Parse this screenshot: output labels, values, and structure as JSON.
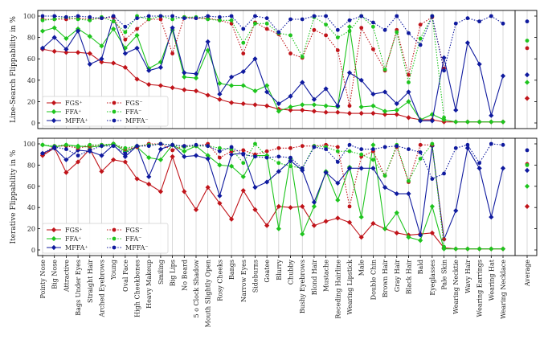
{
  "chart_data": {
    "type": "line",
    "categories": [
      "Pointy Nose",
      "Big Nose",
      "Attractive",
      "Bags Under Eyes",
      "Straight Hair",
      "Arched Eyebrows",
      "Young",
      "Oval Face",
      "High Cheekbones",
      "Heavy Makeup",
      "Smiling",
      "Big Lips",
      "No Beard",
      "5 o Clock Shadow",
      "Mouth Slightly Open",
      "Rosy Cheeks",
      "Bangs",
      "Narrow Eyes",
      "Sideburns",
      "Goatee",
      "Blurry",
      "Chubby",
      "Bushy Eyebrows",
      "Blond Hair",
      "Mustache",
      "Receding Hairline",
      "Wearing Lipstick",
      "Male",
      "Double Chin",
      "Brown Hair",
      "Gray Hair",
      "Black Hair",
      "Bald",
      "Eyeglasses",
      "Pale Skin",
      "Wearing Necktie",
      "Wavy Hair",
      "Wearing Earrings",
      "Wearing Hat",
      "Wearing Necklace"
    ],
    "average_label": "Average",
    "colors": {
      "FGS": "#c0141a",
      "FFA": "#1ec41e",
      "MFFA": "#0f1a9e"
    },
    "panels": [
      {
        "ylabel": "Line-Search Flippability in %",
        "ylim": [
          0,
          100
        ],
        "yticks": [
          0,
          20,
          40,
          60,
          80,
          100
        ],
        "legend_position": "lower-left",
        "series": [
          {
            "name": "FGS⁺",
            "key": "FGS",
            "style": "solid",
            "marker": "diamond",
            "values": [
              69,
              67,
              66,
              66,
              65,
              57,
              56,
              52,
              41,
              36,
              35,
              33,
              31,
              30,
              26,
              22,
              19,
              18,
              17,
              16,
              13,
              12,
              12,
              11,
              10,
              10,
              9,
              9,
              9,
              8,
              8,
              5,
              3,
              3,
              1,
              1,
              1,
              1,
              1,
              1
            ],
            "average": 23
          },
          {
            "name": "FFA⁺",
            "key": "FFA",
            "style": "solid",
            "marker": "diamond",
            "values": [
              86,
              89,
              79,
              88,
              81,
              72,
              88,
              70,
              82,
              51,
              57,
              87,
              43,
              42,
              68,
              37,
              35,
              35,
              30,
              35,
              11,
              15,
              17,
              17,
              16,
              15,
              90,
              15,
              16,
              11,
              12,
              20,
              3,
              8,
              3,
              1,
              1,
              1,
              1,
              1
            ],
            "average": 38
          },
          {
            "name": "MFFA⁺",
            "key": "MFFA",
            "style": "solid",
            "marker": "diamond",
            "values": [
              70,
              80,
              69,
              86,
              55,
              60,
              99,
              65,
              70,
              49,
              52,
              89,
              47,
              46,
              76,
              27,
              43,
              48,
              60,
              29,
              18,
              25,
              38,
              22,
              32,
              16,
              47,
              40,
              27,
              29,
              18,
              29,
              2,
              2,
              61,
              12,
              75,
              55,
              7,
              44
            ],
            "average": 45
          },
          {
            "name": "FGS⁻",
            "key": "FGS",
            "style": "dotted",
            "marker": "circle",
            "values": [
              97,
              97,
              97,
              98,
              97,
              98,
              99,
              78,
              88,
              97,
              97,
              65,
              99,
              98,
              98,
              96,
              93,
              65,
              94,
              88,
              83,
              65,
              61,
              87,
              82,
              68,
              16,
              89,
              69,
              49,
              87,
              45,
              92,
              99,
              51,
              null,
              null,
              null,
              null,
              null
            ],
            "average": 70
          },
          {
            "name": "FFA⁻",
            "key": "FFA",
            "style": "dotted",
            "marker": "circle",
            "values": [
              96,
              97,
              99,
              97,
              96,
              99,
              95,
              85,
              100,
              97,
              100,
              97,
              99,
              99,
              97,
              96,
              96,
              75,
              93,
              93,
              84,
              82,
              62,
              99,
              92,
              80,
              86,
              100,
              90,
              50,
              85,
              38,
              79,
              100,
              5,
              null,
              null,
              null,
              null,
              null
            ],
            "average": 77
          },
          {
            "name": "MFFA⁻",
            "key": "MFFA",
            "style": "dotted",
            "marker": "circle",
            "values": [
              100,
              100,
              99,
              100,
              99,
              98,
              100,
              90,
              98,
              100,
              100,
              100,
              98,
              98,
              100,
              99,
              100,
              88,
              100,
              98,
              85,
              97,
              97,
              100,
              100,
              87,
              96,
              100,
              94,
              87,
              100,
              84,
              73,
              100,
              49,
              93,
              98,
              95,
              100,
              93
            ],
            "average": 95
          }
        ]
      },
      {
        "ylabel": "Iterative Flippability in %",
        "ylim": [
          0,
          100
        ],
        "yticks": [
          0,
          20,
          40,
          60,
          80,
          100
        ],
        "legend_position": "lower-left",
        "series": [
          {
            "name": "FGS⁺",
            "key": "FGS",
            "style": "solid",
            "marker": "diamond",
            "values": [
              89,
              96,
              73,
              83,
              95,
              74,
              85,
              83,
              67,
              62,
              55,
              88,
              55,
              38,
              59,
              44,
              29,
              56,
              38,
              23,
              41,
              40,
              41,
              23,
              27,
              30,
              26,
              12,
              25,
              20,
              16,
              14,
              15,
              16,
              2,
              1,
              1,
              1,
              1,
              1
            ],
            "average": 41
          },
          {
            "name": "FFA⁺",
            "key": "FFA",
            "style": "solid",
            "marker": "diamond",
            "values": [
              99,
              97,
              99,
              98,
              97,
              98,
              100,
              93,
              97,
              87,
              85,
              99,
              93,
              98,
              89,
              80,
              79,
              69,
              89,
              89,
              20,
              86,
              15,
              41,
              74,
              47,
              78,
              31,
              99,
              20,
              35,
              12,
              9,
              41,
              1,
              1,
              1,
              1,
              1,
              1
            ],
            "average": 60
          },
          {
            "name": "MFFA⁺",
            "key": "MFFA",
            "style": "solid",
            "marker": "diamond",
            "values": [
              91,
              96,
              85,
              94,
              93,
              89,
              99,
              88,
              98,
              69,
              95,
              99,
              88,
              89,
              86,
              51,
              90,
              91,
              59,
              64,
              74,
              84,
              75,
              45,
              73,
              63,
              77,
              77,
              77,
              59,
              53,
              53,
              14,
              98,
              10,
              37,
              96,
              77,
              31,
              77
            ],
            "average": 75
          },
          {
            "name": "FGS⁻",
            "key": "FGS",
            "style": "dotted",
            "marker": "circle",
            "values": [
              90,
              98,
              98,
              96,
              98,
              99,
              100,
              95,
              97,
              100,
              100,
              94,
              98,
              98,
              100,
              87,
              93,
              94,
              90,
              93,
              96,
              96,
              98,
              98,
              99,
              97,
              41,
              88,
              93,
              70,
              97,
              64,
              99,
              99,
              10,
              null,
              null,
              null,
              null,
              null
            ],
            "average": 81
          },
          {
            "name": "FFA⁻",
            "key": "FFA",
            "style": "dotted",
            "marker": "circle",
            "values": [
              99,
              98,
              99,
              97,
              99,
              99,
              100,
              96,
              98,
              99,
              100,
              99,
              97,
              98,
              98,
              96,
              95,
              82,
              100,
              88,
              82,
              79,
              77,
              98,
              97,
              93,
              93,
              90,
              85,
              70,
              99,
              65,
              86,
              100,
              3,
              null,
              null,
              null,
              null,
              null
            ],
            "average": 80
          },
          {
            "name": "MFFA⁻",
            "key": "MFFA",
            "style": "dotted",
            "marker": "circle",
            "values": [
              91,
              97,
              95,
              89,
              94,
              98,
              98,
              91,
              98,
              98,
              100,
              99,
              98,
              99,
              98,
              93,
              97,
              90,
              88,
              87,
              88,
              87,
              77,
              97,
              95,
              83,
              99,
              95,
              95,
              97,
              98,
              95,
              92,
              67,
              72,
              96,
              99,
              82,
              100,
              99
            ],
            "average": 94
          }
        ]
      }
    ]
  }
}
